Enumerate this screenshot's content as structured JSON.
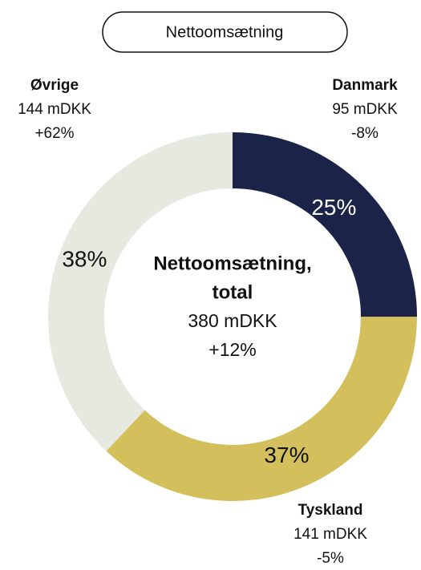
{
  "chart_data": {
    "type": "donut",
    "title": "Nettoomsætning",
    "categories": [
      "Danmark",
      "Tyskland",
      "Øvrige"
    ],
    "values": [
      25,
      37,
      38
    ],
    "value_labels": [
      "25%",
      "37%",
      "38%"
    ],
    "amounts": [
      "95 mDKK",
      "141 mDKK",
      "144 mDKK"
    ],
    "changes": [
      "-8%",
      "-5%",
      "+62%"
    ],
    "colors": [
      "#1b2349",
      "#d3bf5b",
      "#e6e9df"
    ],
    "center": {
      "title": [
        "Nettoomsætning,",
        "total"
      ],
      "amount": "380 mDKK",
      "change": "+12%"
    }
  }
}
